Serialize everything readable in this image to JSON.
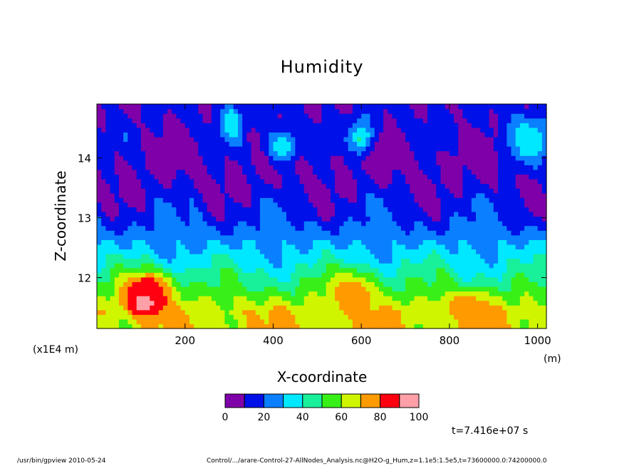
{
  "chart_data": {
    "type": "heatmap",
    "title": "Humidity",
    "xlabel": "X-coordinate",
    "ylabel": "Z-coordinate",
    "x_unit": "(m)",
    "y_scale_note": "(x1E4 m)",
    "xlim": [
      0,
      1020
    ],
    "ylim": [
      11.15,
      14.9
    ],
    "x_ticks": [
      200,
      400,
      600,
      800,
      1000
    ],
    "y_ticks": [
      12,
      13,
      14
    ],
    "levels": [
      0,
      10,
      20,
      30,
      40,
      50,
      60,
      70,
      80,
      90,
      100
    ],
    "colors": [
      "#7f00a8",
      "#0010e8",
      "#0a7fff",
      "#00e8ff",
      "#18f09a",
      "#38f018",
      "#d0f500",
      "#ff9a00",
      "#ff0010",
      "#ffa0a8"
    ],
    "colorbar_labels": [
      "0",
      "20",
      "40",
      "60",
      "80",
      "100"
    ],
    "z_profile": [
      {
        "z": 11.45,
        "h": 68
      },
      {
        "z": 11.7,
        "h": 56
      },
      {
        "z": 12.0,
        "h": 45
      },
      {
        "z": 12.5,
        "h": 30
      },
      {
        "z": 13.0,
        "h": 18
      },
      {
        "z": 13.5,
        "h": 10
      },
      {
        "z": 14.0,
        "h": 7
      },
      {
        "z": 14.5,
        "h": 12
      }
    ],
    "features": [
      {
        "x": 110,
        "z": 11.6,
        "h": 100,
        "sx": 45,
        "sz": 0.22
      },
      {
        "x": 115,
        "z": 11.85,
        "h": 88,
        "sx": 60,
        "sz": 0.28
      },
      {
        "x": 580,
        "z": 11.75,
        "h": 80,
        "sx": 55,
        "sz": 0.35
      },
      {
        "x": 840,
        "z": 11.55,
        "h": 78,
        "sx": 50,
        "sz": 0.2
      },
      {
        "x": 305,
        "z": 14.6,
        "h": 40,
        "sx": 25,
        "sz": 0.3
      },
      {
        "x": 420,
        "z": 14.2,
        "h": 35,
        "sx": 40,
        "sz": 0.3
      },
      {
        "x": 600,
        "z": 14.35,
        "h": 42,
        "sx": 25,
        "sz": 0.3
      },
      {
        "x": 980,
        "z": 14.3,
        "h": 38,
        "sx": 50,
        "sz": 0.4
      }
    ],
    "time_label": "t=7.416e+07 s"
  },
  "footer": {
    "program": "/usr/bin/gpview   2010-05-24",
    "source": "Control/.../arare-Control-27-AllNodes_Analysis.nc@H2O-g_Hum,z=1.1e5:1.5e5,t=73600000.0:74200000.0"
  }
}
